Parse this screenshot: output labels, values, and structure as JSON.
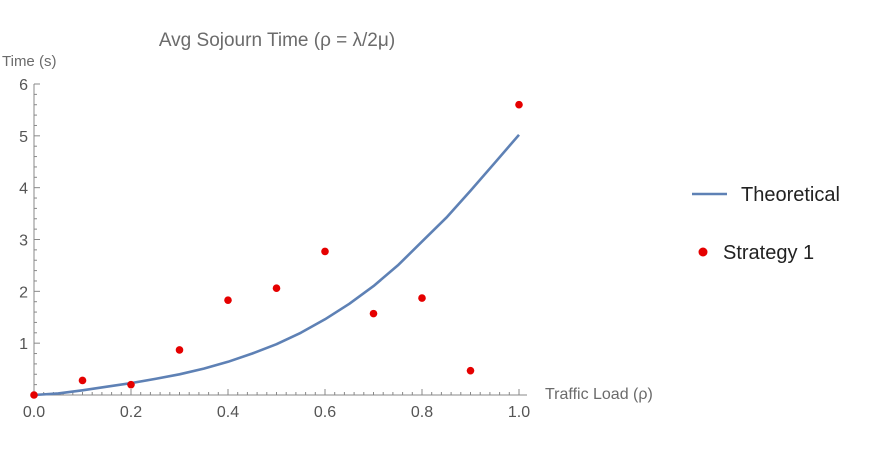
{
  "chart_data": {
    "type": "line",
    "title": "Avg Sojourn Time (ρ = λ/2μ)",
    "xlabel": "Traffic Load (ρ)",
    "ylabel": "Time (s)",
    "xlim": [
      0,
      1
    ],
    "ylim": [
      0,
      6
    ],
    "x_ticks": [
      "0.0",
      "0.2",
      "0.4",
      "0.6",
      "0.8",
      "1.0"
    ],
    "y_ticks": [
      "1",
      "2",
      "3",
      "4",
      "5",
      "6"
    ],
    "grid": false,
    "legend_position": "right",
    "series": [
      {
        "name": "Theoretical",
        "kind": "line",
        "color": "#5e81b5",
        "x": [
          0.0,
          0.05,
          0.1,
          0.15,
          0.2,
          0.25,
          0.3,
          0.35,
          0.4,
          0.45,
          0.5,
          0.55,
          0.6,
          0.65,
          0.7,
          0.75,
          0.8,
          0.85,
          0.9,
          0.95,
          1.0
        ],
        "y": [
          0.0,
          0.03,
          0.09,
          0.16,
          0.23,
          0.31,
          0.4,
          0.51,
          0.64,
          0.8,
          0.98,
          1.2,
          1.46,
          1.76,
          2.1,
          2.5,
          2.96,
          3.42,
          3.94,
          4.48,
          5.02
        ]
      },
      {
        "name": "Strategy 1",
        "kind": "scatter",
        "color": "#e50000",
        "x": [
          0.0,
          0.1,
          0.2,
          0.3,
          0.4,
          0.5,
          0.6,
          0.7,
          0.8,
          0.9,
          1.0
        ],
        "y": [
          0.0,
          0.28,
          0.2,
          0.87,
          1.83,
          2.06,
          2.77,
          1.57,
          1.87,
          0.47,
          5.6
        ]
      }
    ]
  }
}
